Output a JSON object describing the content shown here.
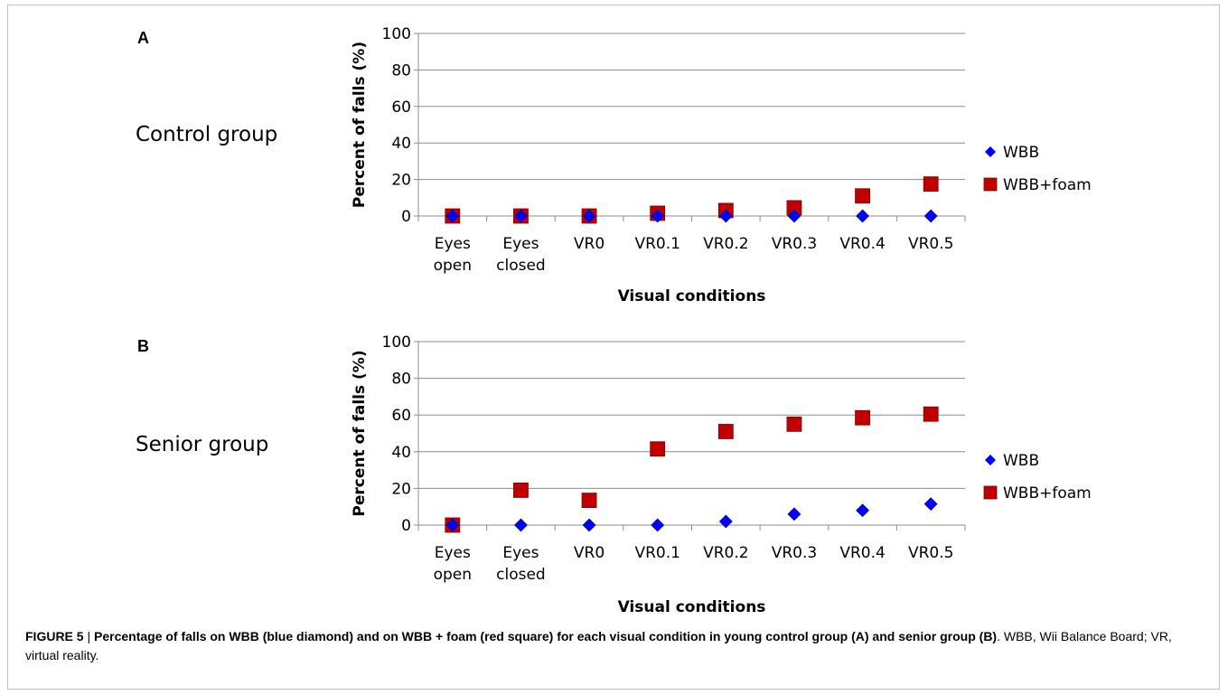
{
  "chart_data": [
    {
      "type": "scatter",
      "panel_label": "A",
      "group_label": "Control group",
      "categories": [
        "Eyes open",
        "Eyes closed",
        "VR0",
        "VR0.1",
        "VR0.2",
        "VR0.3",
        "VR0.4",
        "VR0.5"
      ],
      "category_lines": [
        [
          "Eyes",
          "open"
        ],
        [
          "Eyes",
          "closed"
        ],
        [
          "VR0"
        ],
        [
          "VR0.1"
        ],
        [
          "VR0.2"
        ],
        [
          "VR0.3"
        ],
        [
          "VR0.4"
        ],
        [
          "VR0.5"
        ]
      ],
      "series": [
        {
          "name": "WBB",
          "marker": "diamond",
          "color": "#0000ff",
          "values": [
            0,
            0,
            0,
            0,
            0,
            0,
            0,
            0
          ]
        },
        {
          "name": "WBB+foam",
          "marker": "square",
          "color": "#c00000",
          "values": [
            0,
            0,
            0,
            1.5,
            3,
            4.5,
            11,
            17.5
          ]
        }
      ],
      "xlabel": "Visual conditions",
      "ylabel": "Percent of falls (%)",
      "ylim": [
        0,
        100
      ],
      "yticks": [
        0,
        20,
        40,
        60,
        80,
        100
      ],
      "grid": true,
      "legend_position": "right"
    },
    {
      "type": "scatter",
      "panel_label": "B",
      "group_label": "Senior group",
      "categories": [
        "Eyes open",
        "Eyes closed",
        "VR0",
        "VR0.1",
        "VR0.2",
        "VR0.3",
        "VR0.4",
        "VR0.5"
      ],
      "category_lines": [
        [
          "Eyes",
          "open"
        ],
        [
          "Eyes",
          "closed"
        ],
        [
          "VR0"
        ],
        [
          "VR0.1"
        ],
        [
          "VR0.2"
        ],
        [
          "VR0.3"
        ],
        [
          "VR0.4"
        ],
        [
          "VR0.5"
        ]
      ],
      "series": [
        {
          "name": "WBB",
          "marker": "diamond",
          "color": "#0000ff",
          "values": [
            0,
            0,
            0,
            0,
            2,
            6,
            8,
            11.5
          ]
        },
        {
          "name": "WBB+foam",
          "marker": "square",
          "color": "#c00000",
          "values": [
            0,
            19,
            13.5,
            41.5,
            51,
            55,
            58.5,
            60.5
          ]
        }
      ],
      "xlabel": "Visual conditions",
      "ylabel": "Percent of falls (%)",
      "ylim": [
        0,
        100
      ],
      "yticks": [
        0,
        20,
        40,
        60,
        80,
        100
      ],
      "grid": true,
      "legend_position": "right"
    }
  ],
  "caption": {
    "figure_label": "FIGURE 5",
    "separator": " | ",
    "bold_text": "Percentage of falls on WBB (blue diamond) and on WBB + foam (red square) for each visual condition in young control group (A) and senior group (B)",
    "regular_text": ". WBB, Wii Balance Board; VR, virtual reality."
  }
}
